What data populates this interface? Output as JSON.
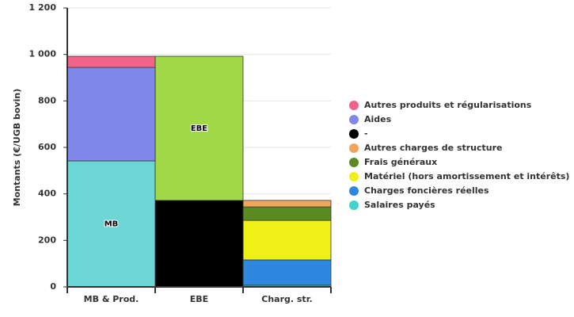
{
  "chart_data": {
    "type": "stacked_bar",
    "y_label": "Montants (€/UGB bovin)",
    "categories": [
      "MB & Prod.",
      "EBE",
      "Charg. str."
    ],
    "ylim": [
      0,
      1200
    ],
    "yticks": [
      0,
      200,
      400,
      600,
      800,
      {
        "value": 1000,
        "label": "1 000"
      },
      {
        "value": 1200,
        "label": "1 200"
      }
    ],
    "grid": true,
    "legend": "right",
    "series": [
      {
        "name": "Salaires payés",
        "color": "#40d4cc",
        "values": [
          null,
          null,
          7
        ]
      },
      {
        "name": "Charges foncières réelles",
        "color": "#2f88e0",
        "values": [
          null,
          null,
          109
        ]
      },
      {
        "name": "Matériel (hors amortissement et intérêts)",
        "color": "#eef016",
        "values": [
          null,
          null,
          170
        ]
      },
      {
        "name": "Frais généraux",
        "color": "#5a8a22",
        "values": [
          null,
          null,
          58
        ]
      },
      {
        "name": "Autres charges de structure",
        "color": "#f2a55a",
        "values": [
          null,
          null,
          28
        ]
      },
      {
        "name": "-",
        "color": "#000000",
        "values": [
          null,
          372,
          null
        ]
      },
      {
        "name": "MB",
        "color": "#6ed6d6",
        "values": [
          542,
          null,
          null
        ],
        "legend": false
      },
      {
        "name": "EBE",
        "color": "#a0d848",
        "values": [
          null,
          620,
          null
        ],
        "legend": false
      },
      {
        "name": "Aides",
        "color": "#8088ea",
        "values": [
          402,
          null,
          null
        ]
      },
      {
        "name": "Autres produits et régularisations",
        "color": "#f06488",
        "values": [
          48,
          null,
          null
        ]
      }
    ]
  }
}
